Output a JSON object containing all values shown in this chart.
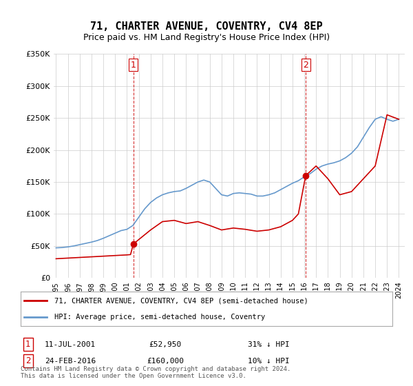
{
  "title": "71, CHARTER AVENUE, COVENTRY, CV4 8EP",
  "subtitle": "Price paid vs. HM Land Registry's House Price Index (HPI)",
  "sale1_date": "11-JUL-2001",
  "sale1_price": 52950,
  "sale1_label": "1",
  "sale1_hpi_diff": "31% ↓ HPI",
  "sale2_date": "24-FEB-2016",
  "sale2_price": 160000,
  "sale2_label": "2",
  "sale2_hpi_diff": "10% ↓ HPI",
  "legend_red": "71, CHARTER AVENUE, COVENTRY, CV4 8EP (semi-detached house)",
  "legend_blue": "HPI: Average price, semi-detached house, Coventry",
  "footer": "Contains HM Land Registry data © Crown copyright and database right 2024.\nThis data is licensed under the Open Government Licence v3.0.",
  "ylim": [
    0,
    350000
  ],
  "yticks": [
    0,
    50000,
    100000,
    150000,
    200000,
    250000,
    300000,
    350000
  ],
  "ytick_labels": [
    "£0",
    "£50K",
    "£100K",
    "£150K",
    "£200K",
    "£250K",
    "£300K",
    "£350K"
  ],
  "hpi_color": "#6699cc",
  "price_color": "#cc0000",
  "vline_color": "#cc0000",
  "background_color": "#ffffff",
  "grid_color": "#cccccc"
}
